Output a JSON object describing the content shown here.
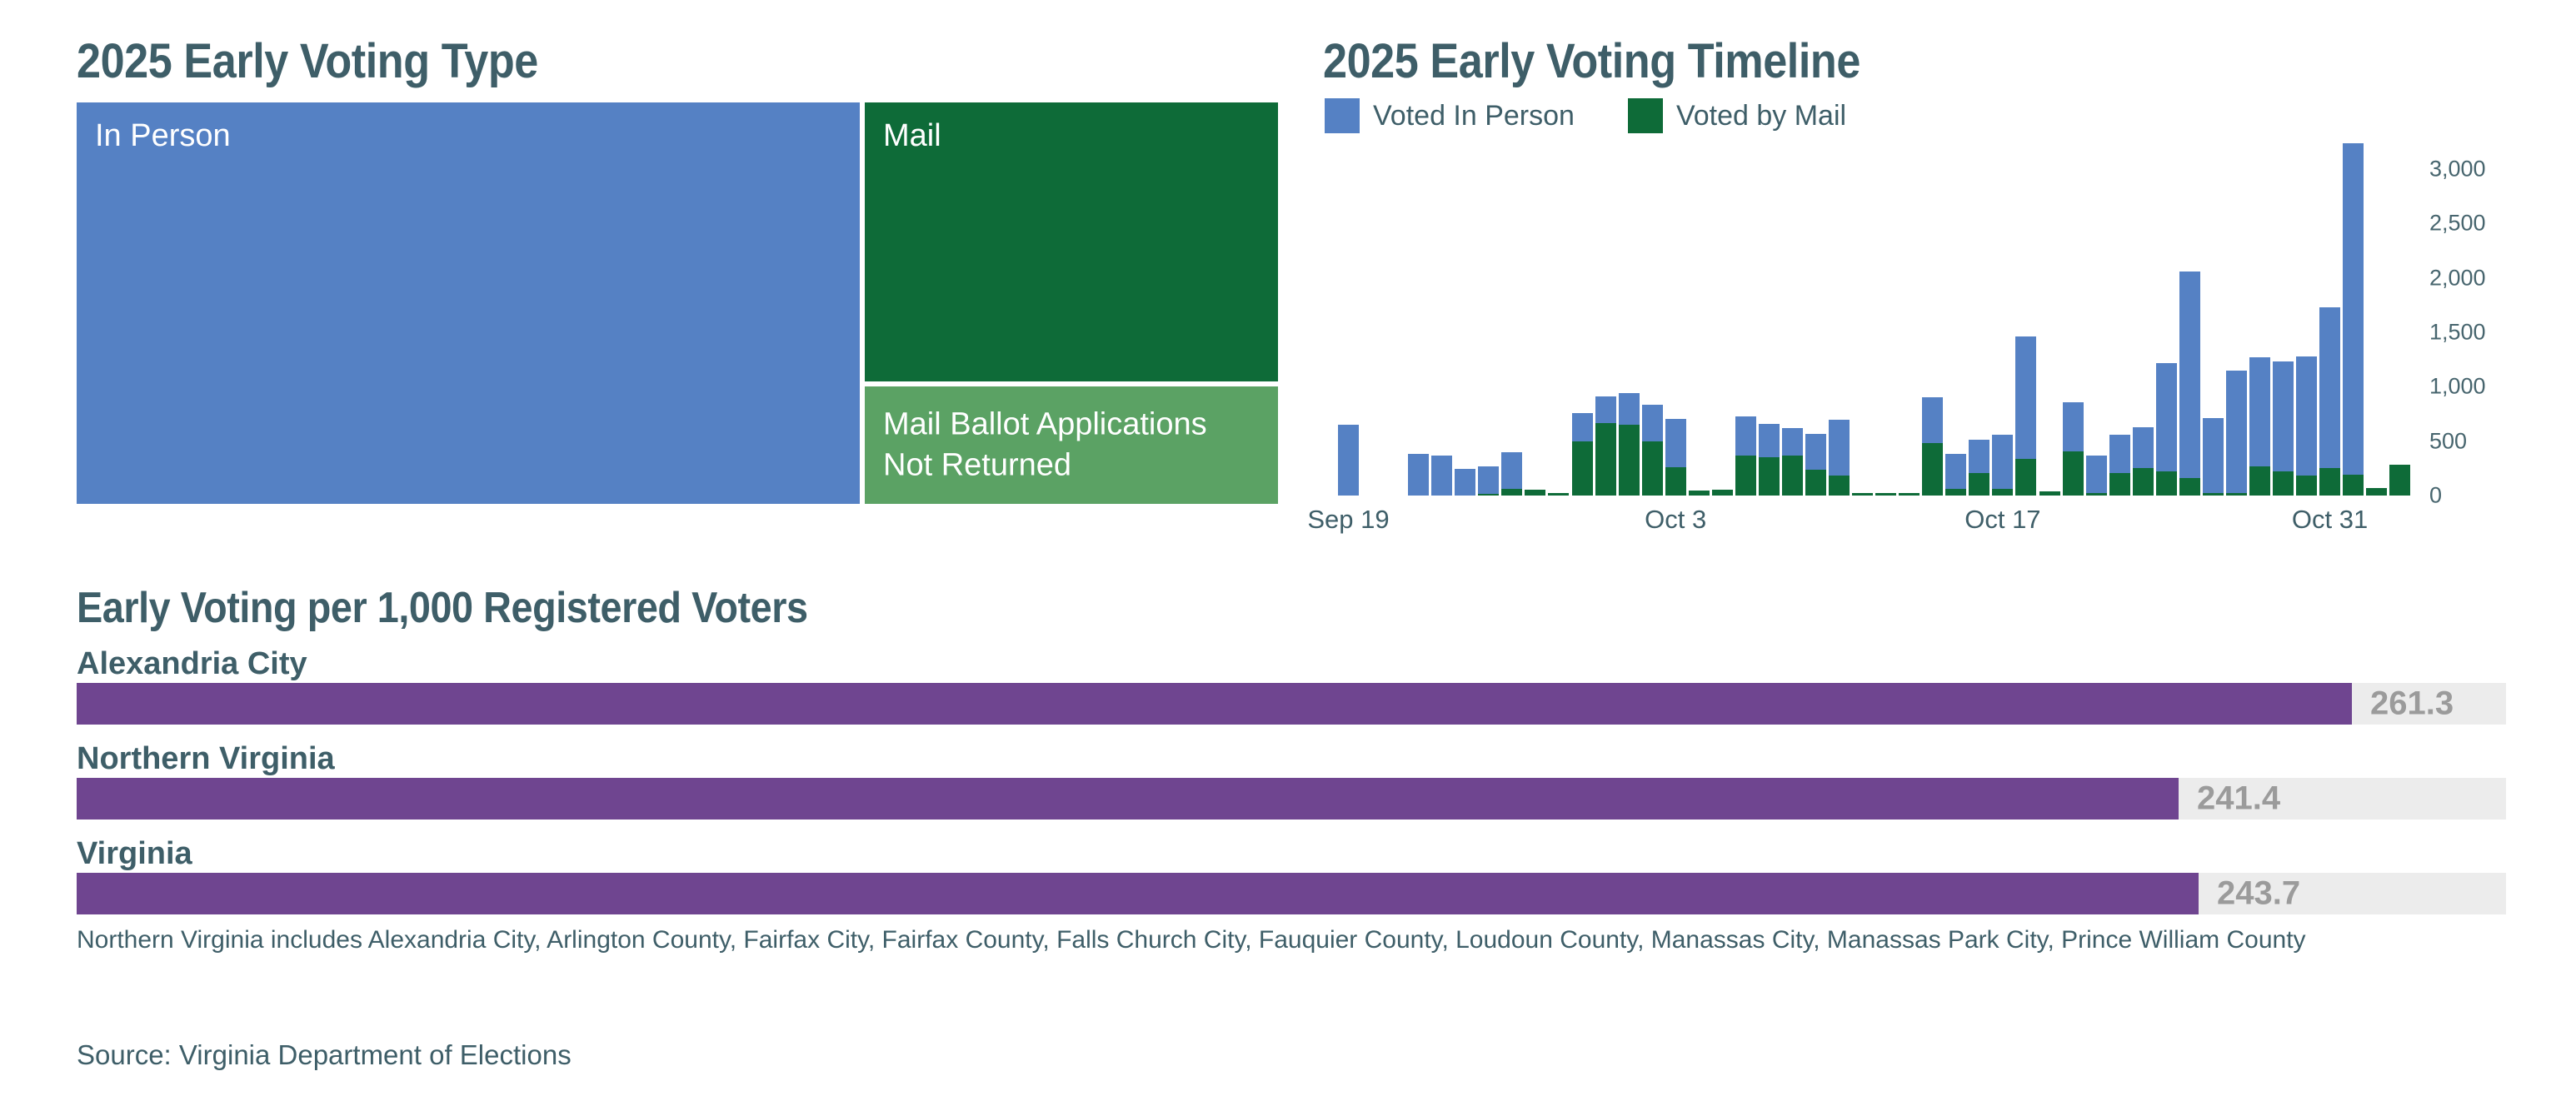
{
  "footnote": "Northern Virginia includes Alexandria City, Arlington County, Fairfax City, Fairfax County, Falls Church City, Fauquier County, Loudoun County, Manassas City, Manassas Park City, Prince William County",
  "source": "Source: Virginia Department of Elections",
  "chart_data": [
    {
      "type": "treemap",
      "title": "2025 Early Voting Type",
      "items": [
        {
          "label": "In Person",
          "color": "#5581c4"
        },
        {
          "label": "Mail",
          "color": "#0e6b38"
        },
        {
          "label": "Mail Ballot Applications Not Returned",
          "color": "#5ba264"
        }
      ]
    },
    {
      "type": "bar",
      "subtype": "stacked-column",
      "title": "2025 Early Voting Timeline",
      "grid": false,
      "legend_position": "top",
      "ylim": [
        0,
        3000
      ],
      "y_ticks": [
        {
          "label": "0",
          "value": 0
        },
        {
          "label": "500",
          "value": 500
        },
        {
          "label": "1,000",
          "value": 1000
        },
        {
          "label": "1,500",
          "value": 1500
        },
        {
          "label": "2,000",
          "value": 2000
        },
        {
          "label": "2,500",
          "value": 2500
        },
        {
          "label": "3,000",
          "value": 3000
        }
      ],
      "x_tick_labels": [
        "Sep 19",
        "Oct 3",
        "Oct 17",
        "Oct 31"
      ],
      "x": [
        "Sep 19",
        "Sep 20",
        "Sep 21",
        "Sep 22",
        "Sep 23",
        "Sep 24",
        "Sep 25",
        "Sep 26",
        "Sep 27",
        "Sep 28",
        "Sep 29",
        "Sep 30",
        "Oct 1",
        "Oct 2",
        "Oct 3",
        "Oct 4",
        "Oct 5",
        "Oct 6",
        "Oct 7",
        "Oct 8",
        "Oct 9",
        "Oct 10",
        "Oct 11",
        "Oct 12",
        "Oct 13",
        "Oct 14",
        "Oct 15",
        "Oct 16",
        "Oct 17",
        "Oct 18",
        "Oct 19",
        "Oct 20",
        "Oct 21",
        "Oct 22",
        "Oct 23",
        "Oct 24",
        "Oct 25",
        "Oct 26",
        "Oct 27",
        "Oct 28",
        "Oct 29",
        "Oct 30",
        "Oct 31",
        "Nov 1",
        "Nov 2",
        "Nov 3"
      ],
      "series": [
        {
          "name": "Voted In Person",
          "color": "#5581c4",
          "values": [
            650,
            0,
            0,
            380,
            365,
            245,
            250,
            340,
            0,
            0,
            265,
            245,
            295,
            340,
            445,
            0,
            0,
            355,
            310,
            255,
            330,
            515,
            0,
            0,
            0,
            420,
            325,
            305,
            500,
            1125,
            0,
            450,
            345,
            350,
            375,
            995,
            1900,
            690,
            1125,
            1000,
            1010,
            1095,
            1480,
            3050,
            0,
            0
          ]
        },
        {
          "name": "Voted by Mail",
          "color": "#0e6b38",
          "values": [
            0,
            0,
            0,
            0,
            0,
            0,
            15,
            60,
            50,
            25,
            495,
            665,
            650,
            495,
            260,
            45,
            50,
            370,
            350,
            365,
            240,
            185,
            20,
            20,
            25,
            480,
            60,
            205,
            60,
            340,
            40,
            405,
            25,
            205,
            250,
            220,
            160,
            20,
            25,
            270,
            220,
            185,
            250,
            190,
            70,
            280
          ]
        }
      ]
    },
    {
      "type": "bar",
      "subtype": "horizontal",
      "title": "Early Voting per 1,000 Registered Voters",
      "categories": [
        "Alexandria City",
        "Northern Virginia",
        "Virginia"
      ],
      "values": [
        261.3,
        241.4,
        243.7
      ],
      "value_labels": [
        "261.3",
        "241.4",
        "243.7"
      ],
      "xlim": [
        0,
        279
      ],
      "bar_color": "#6f4590",
      "track_color": "#ececec"
    }
  ]
}
